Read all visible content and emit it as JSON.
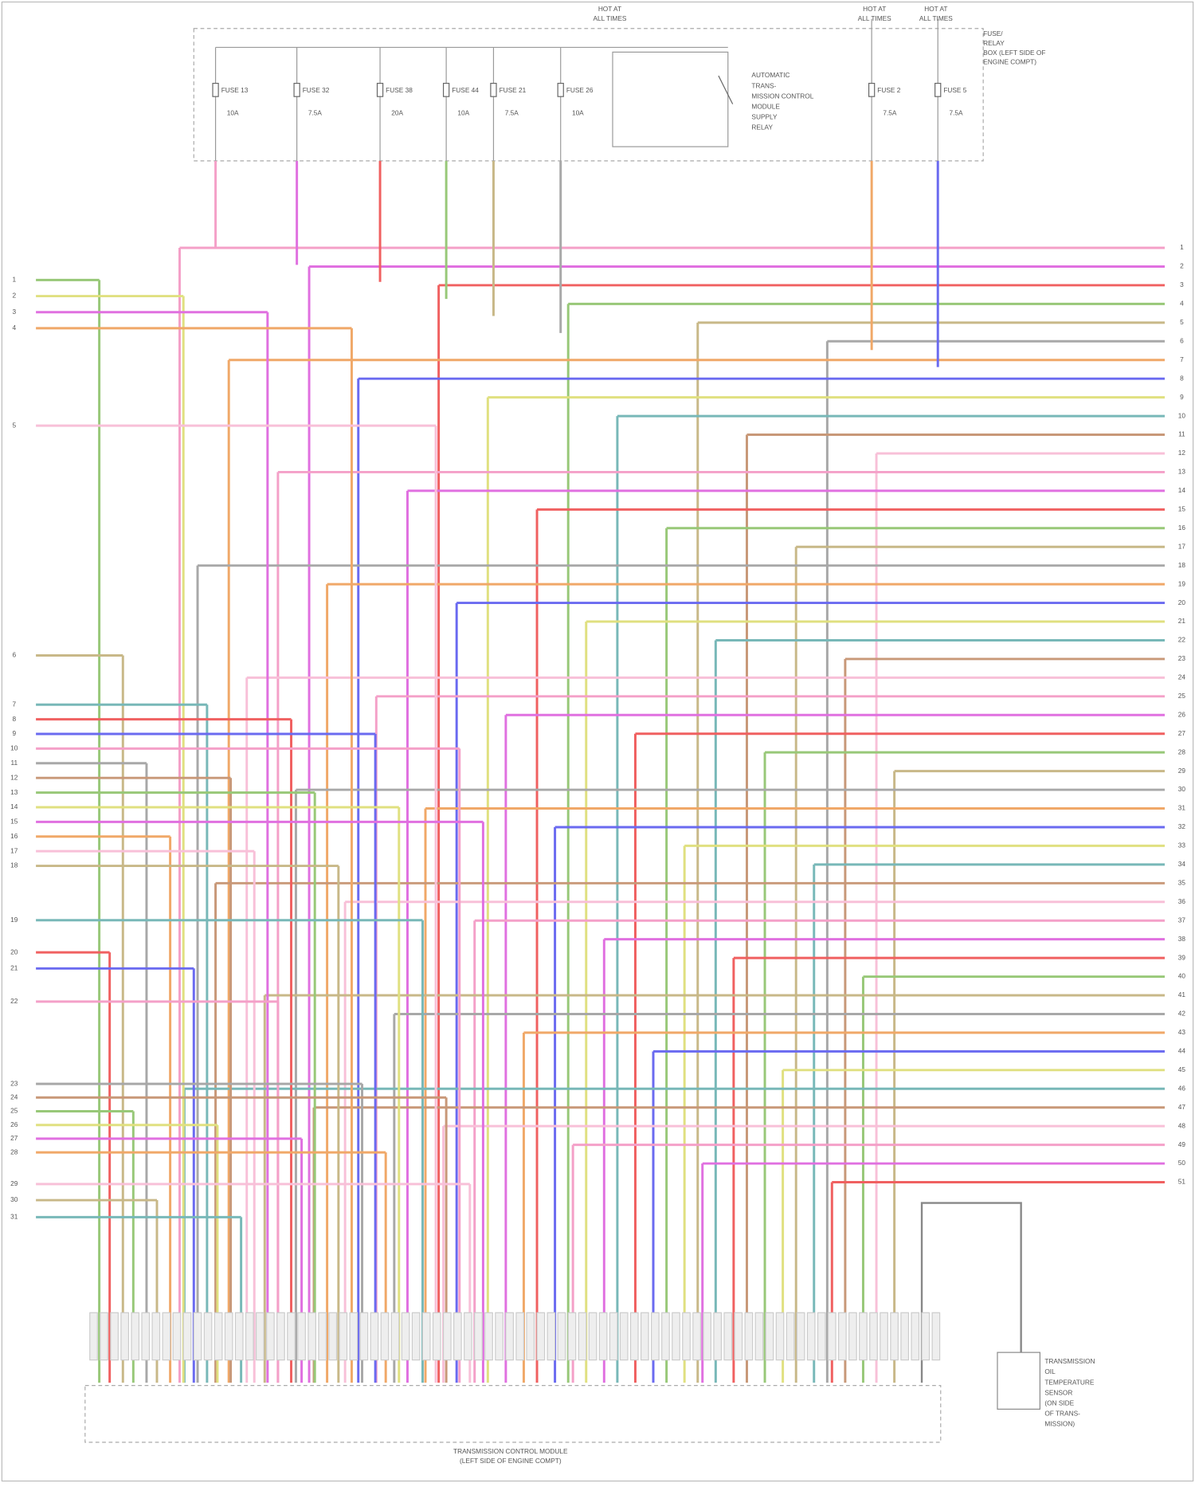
{
  "header": {
    "hot_labels": [
      [
        "HOT AT",
        "ALL TIMES"
      ],
      [
        "HOT AT",
        "ALL TIMES"
      ],
      [
        "HOT AT",
        "ALL TIMES"
      ]
    ],
    "fuse_box": [
      "FUSE/",
      "RELAY",
      "BOX (LEFT SIDE OF",
      "ENGINE COMPT)"
    ]
  },
  "fuses": [
    {
      "name": "FUSE 13",
      "amps": "10A"
    },
    {
      "name": "FUSE 32",
      "amps": "7.5A"
    },
    {
      "name": "FUSE 38",
      "amps": "20A"
    },
    {
      "name": "FUSE 44",
      "amps": "10A"
    },
    {
      "name": "FUSE 21",
      "amps": "7.5A"
    },
    {
      "name": "FUSE 26",
      "amps": "10A"
    },
    {
      "name": "FUSE 2",
      "amps": "7.5A"
    },
    {
      "name": "FUSE 5",
      "amps": "7.5A"
    }
  ],
  "relay": [
    "AUTOMATIC",
    "TRANS-",
    "MISSION CONTROL",
    "MODULE",
    "SUPPLY",
    "RELAY"
  ],
  "left_pins": [
    1,
    2,
    3,
    4,
    5,
    6,
    7,
    8,
    9,
    10,
    11,
    12,
    13,
    14,
    15,
    16,
    17,
    18,
    19,
    20,
    21,
    22,
    23,
    24,
    25,
    26,
    27,
    28,
    29,
    30,
    31
  ],
  "right_pins": [
    1,
    2,
    3,
    4,
    5,
    6,
    7,
    8,
    9,
    10,
    11,
    12,
    13,
    14,
    15,
    16,
    17,
    18,
    19,
    20,
    21,
    22,
    23,
    24,
    25,
    26,
    27,
    28,
    29,
    30,
    31,
    32,
    33,
    34,
    35,
    36,
    37,
    38,
    39,
    40,
    41,
    42,
    43,
    44,
    45,
    46,
    47,
    48,
    49,
    50,
    51
  ],
  "module": [
    "TRANSMISSION CONTROL MODULE",
    "(LEFT SIDE OF ENGINE COMPT)"
  ],
  "sensor": [
    "TRANSMISSION",
    "OIL",
    "TEMPERATURE",
    "SENSOR",
    "(ON SIDE",
    "OF TRANS-",
    "MISSION)"
  ]
}
